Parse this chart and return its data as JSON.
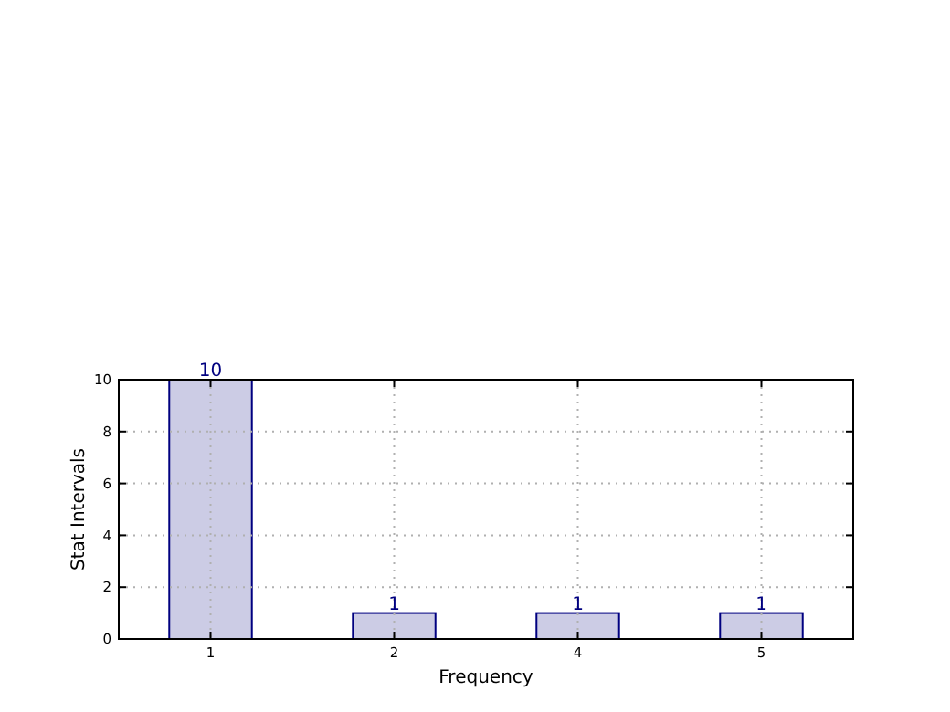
{
  "chart_data": {
    "type": "bar",
    "xlabel": "Frequency",
    "ylabel": "Stat Intervals",
    "categories": [
      "1",
      "2",
      "4",
      "5"
    ],
    "values": [
      10,
      1,
      1,
      1
    ],
    "color": "#cccce5",
    "ylim": [
      0,
      10
    ],
    "yticks": [
      0,
      2,
      4,
      6,
      8,
      10
    ],
    "grid": true,
    "data_labels": true
  }
}
